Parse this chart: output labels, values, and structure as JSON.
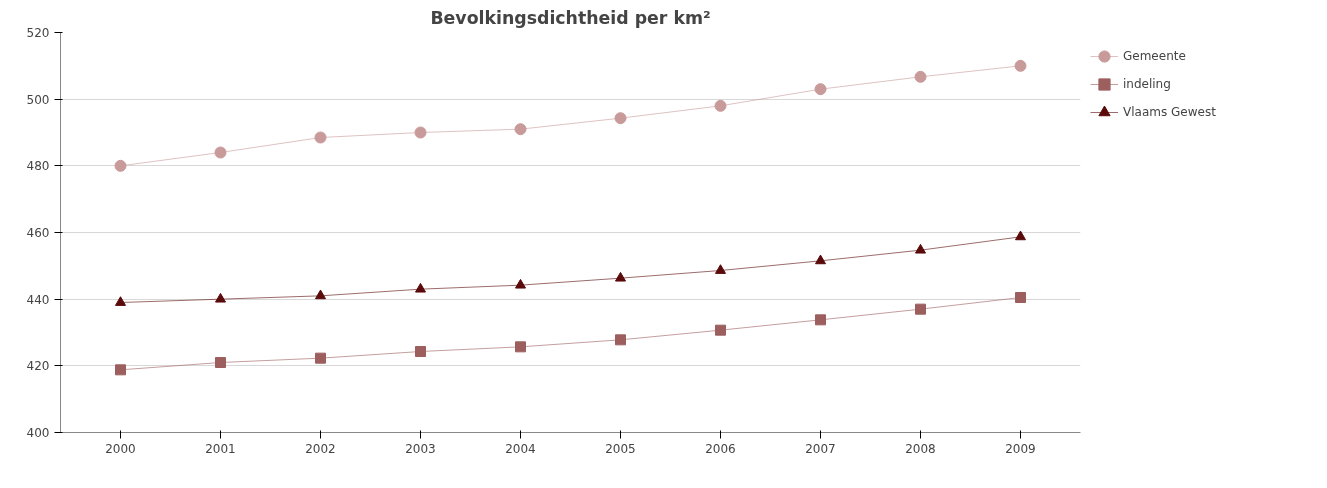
{
  "chart_data": {
    "type": "line",
    "title": "Bevolkingsdichtheid per km²",
    "categories": [
      "2000",
      "2001",
      "2002",
      "2003",
      "2004",
      "2005",
      "2006",
      "2007",
      "2008",
      "2009"
    ],
    "series": [
      {
        "name": "Gemeente",
        "color": "#c89a9a",
        "marker": "circle",
        "values": [
          480,
          484,
          488.5,
          490,
          491,
          494.3,
          498,
          503,
          506.7,
          510
        ]
      },
      {
        "name": "indeling",
        "color": "#9c5f5e",
        "marker": "square",
        "values": [
          418.8,
          421,
          422.3,
          424.3,
          425.7,
          427.8,
          430.7,
          433.8,
          437,
          440.5
        ]
      },
      {
        "name": "Vlaams Gewest",
        "color": "#5a0a0a",
        "marker": "triangle",
        "values": [
          439,
          440,
          441,
          443,
          444.2,
          446.3,
          448.6,
          451.5,
          454.7,
          458.7
        ]
      }
    ],
    "ylim": [
      400,
      520
    ],
    "yticks": [
      400,
      420,
      440,
      460,
      480,
      500,
      520
    ],
    "grid": "y",
    "legend": "top right",
    "line_style": "solid"
  }
}
